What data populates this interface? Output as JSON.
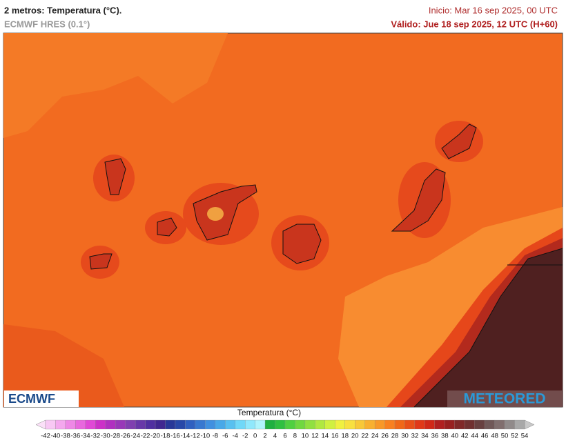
{
  "header": {
    "title": "2 metros: Temperatura (°C).",
    "model": "ECMWF HRES (0.1°)",
    "init": "Inicio: Mar 16 sep 2025, 00 UTC",
    "valid": "Válido: Jue 18 sep 2025, 12 UTC (H+60)"
  },
  "logos": {
    "left": "ECMWF",
    "right": "METEORED"
  },
  "colorbar": {
    "title": "Temperatura (°C)",
    "ticks": [
      -42,
      -40,
      -38,
      -36,
      -34,
      -32,
      -30,
      -28,
      -26,
      -24,
      -22,
      -20,
      -18,
      -16,
      -14,
      -12,
      -10,
      -8,
      -6,
      -4,
      -2,
      0,
      2,
      4,
      6,
      8,
      10,
      12,
      14,
      16,
      18,
      20,
      22,
      24,
      26,
      28,
      30,
      32,
      34,
      36,
      38,
      40,
      42,
      44,
      46,
      48,
      50,
      52,
      54
    ],
    "under_color": "#fbe0f8",
    "over_color": "#c8c8c8",
    "colors": [
      "#f8c8f4",
      "#f4a8ee",
      "#ee88e6",
      "#e868de",
      "#e048d6",
      "#cc30c8",
      "#b030c0",
      "#9838b8",
      "#8040b0",
      "#6838a8",
      "#5030a0",
      "#402890",
      "#283898",
      "#2848a8",
      "#3060c0",
      "#3878d0",
      "#4090e0",
      "#48a8e8",
      "#58c0f0",
      "#70d8f8",
      "#90e8fc",
      "#b0f4fc",
      "#20b040",
      "#30c040",
      "#50d040",
      "#70d840",
      "#90e040",
      "#b0e840",
      "#d0f040",
      "#f0f040",
      "#f8e040",
      "#f8c838",
      "#f8b030",
      "#f89828",
      "#f88020",
      "#f06818",
      "#e85018",
      "#e03818",
      "#d02818",
      "#b02020",
      "#982020",
      "#802828",
      "#703030",
      "#684040",
      "#705858",
      "#806e6e",
      "#908a8a",
      "#a8a8a8"
    ]
  }
}
